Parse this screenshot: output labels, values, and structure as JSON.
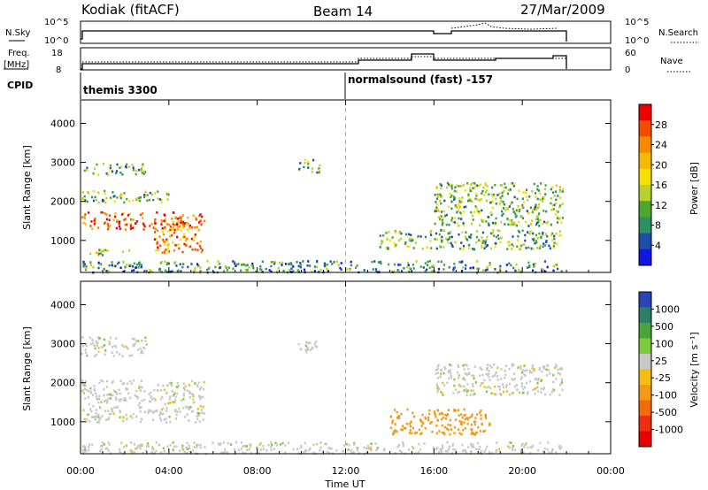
{
  "header": {
    "station": "Kodiak (fitACF)",
    "beam": "Beam 14",
    "date": "27/Mar/2009"
  },
  "top_panels": {
    "nsky_label": "N.Sky",
    "nsky_ticks": [
      "10^5",
      "10^0"
    ],
    "nsearch_label": "N.Search",
    "freq_label_1": "Freq.",
    "freq_label_2": "[MHz]",
    "freq_ticks": [
      "18",
      "8"
    ],
    "nave_ticks": [
      "60",
      "0"
    ],
    "nave_label": "Nave",
    "cpid_label": "CPID",
    "cpid_segments": [
      {
        "label": "themis 3300",
        "start_hour": 0
      },
      {
        "label": "normalsound (fast) -157",
        "start_hour": 12
      }
    ]
  },
  "power_colorbar": {
    "label": "Power [dB]",
    "ticks": [
      "28",
      "24",
      "20",
      "16",
      "12",
      "8",
      "4"
    ],
    "colors": [
      "#ee0000",
      "#f24a00",
      "#f58a00",
      "#f7b800",
      "#f5e000",
      "#b8d22a",
      "#4fa52d",
      "#2e8f63",
      "#1d4fa8",
      "#1018e0"
    ]
  },
  "velocity_colorbar": {
    "label": "Velocity [m s⁻¹]",
    "ticks": [
      "1000",
      "500",
      "100",
      "25",
      "-25",
      "-100",
      "-500",
      "-1000"
    ],
    "colors": [
      "#2a46b4",
      "#2e7f6a",
      "#4aa43e",
      "#7fca3c",
      "#c8c8c8",
      "#f2bd14",
      "#f39a14",
      "#f26a0e",
      "#ee2e10",
      "#e80000"
    ]
  },
  "chart_data": [
    {
      "type": "heatmap",
      "title": "",
      "ylabel": "Slant Range [km]",
      "ylim": [
        180,
        4600
      ],
      "yticks": [
        "4000",
        "3000",
        "2000",
        "1000"
      ],
      "xlim": [
        0,
        24
      ],
      "quantity": "Power [dB]",
      "regions": [
        {
          "t": [
            0.0,
            5.6
          ],
          "r": [
            1300,
            1750
          ],
          "value": 26
        },
        {
          "t": [
            3.3,
            5.5
          ],
          "r": [
            700,
            1500
          ],
          "value": 22
        },
        {
          "t": [
            0.0,
            3.0
          ],
          "r": [
            2700,
            3000
          ],
          "value": 10
        },
        {
          "t": [
            0.0,
            4.0
          ],
          "r": [
            2000,
            2300
          ],
          "value": 12
        },
        {
          "t": [
            0.0,
            2.5
          ],
          "r": [
            650,
            800
          ],
          "value": 14
        },
        {
          "t": [
            9.8,
            10.8
          ],
          "r": [
            2750,
            3100
          ],
          "value": 10
        },
        {
          "t": [
            13.5,
            21.8
          ],
          "r": [
            800,
            1300
          ],
          "value": 10
        },
        {
          "t": [
            16.0,
            21.8
          ],
          "r": [
            1400,
            2500
          ],
          "value": 12
        },
        {
          "t": [
            0.0,
            21.8
          ],
          "r": [
            200,
            500
          ],
          "value": 8
        }
      ]
    },
    {
      "type": "heatmap",
      "title": "",
      "ylabel": "Slant Range [km]",
      "xlabel": "Time UT",
      "ylim": [
        180,
        4600
      ],
      "yticks": [
        "4000",
        "3000",
        "2000",
        "1000"
      ],
      "xlim": [
        0,
        24
      ],
      "xticks": [
        "00:00",
        "04:00",
        "08:00",
        "12:00",
        "16:00",
        "20:00",
        "00:00"
      ],
      "quantity": "Velocity [m s-1]",
      "regions": [
        {
          "t": [
            0.0,
            5.6
          ],
          "r": [
            1000,
            2100
          ],
          "value": 0
        },
        {
          "t": [
            0.0,
            3.0
          ],
          "r": [
            2700,
            3200
          ],
          "value": 0
        },
        {
          "t": [
            9.8,
            10.8
          ],
          "r": [
            2750,
            3100
          ],
          "value": 0
        },
        {
          "t": [
            14.0,
            18.5
          ],
          "r": [
            700,
            1350
          ],
          "value": -150
        },
        {
          "t": [
            16.0,
            21.8
          ],
          "r": [
            1700,
            2500
          ],
          "value": 0
        },
        {
          "t": [
            0.0,
            21.8
          ],
          "r": [
            200,
            500
          ],
          "value": 0
        }
      ]
    }
  ]
}
